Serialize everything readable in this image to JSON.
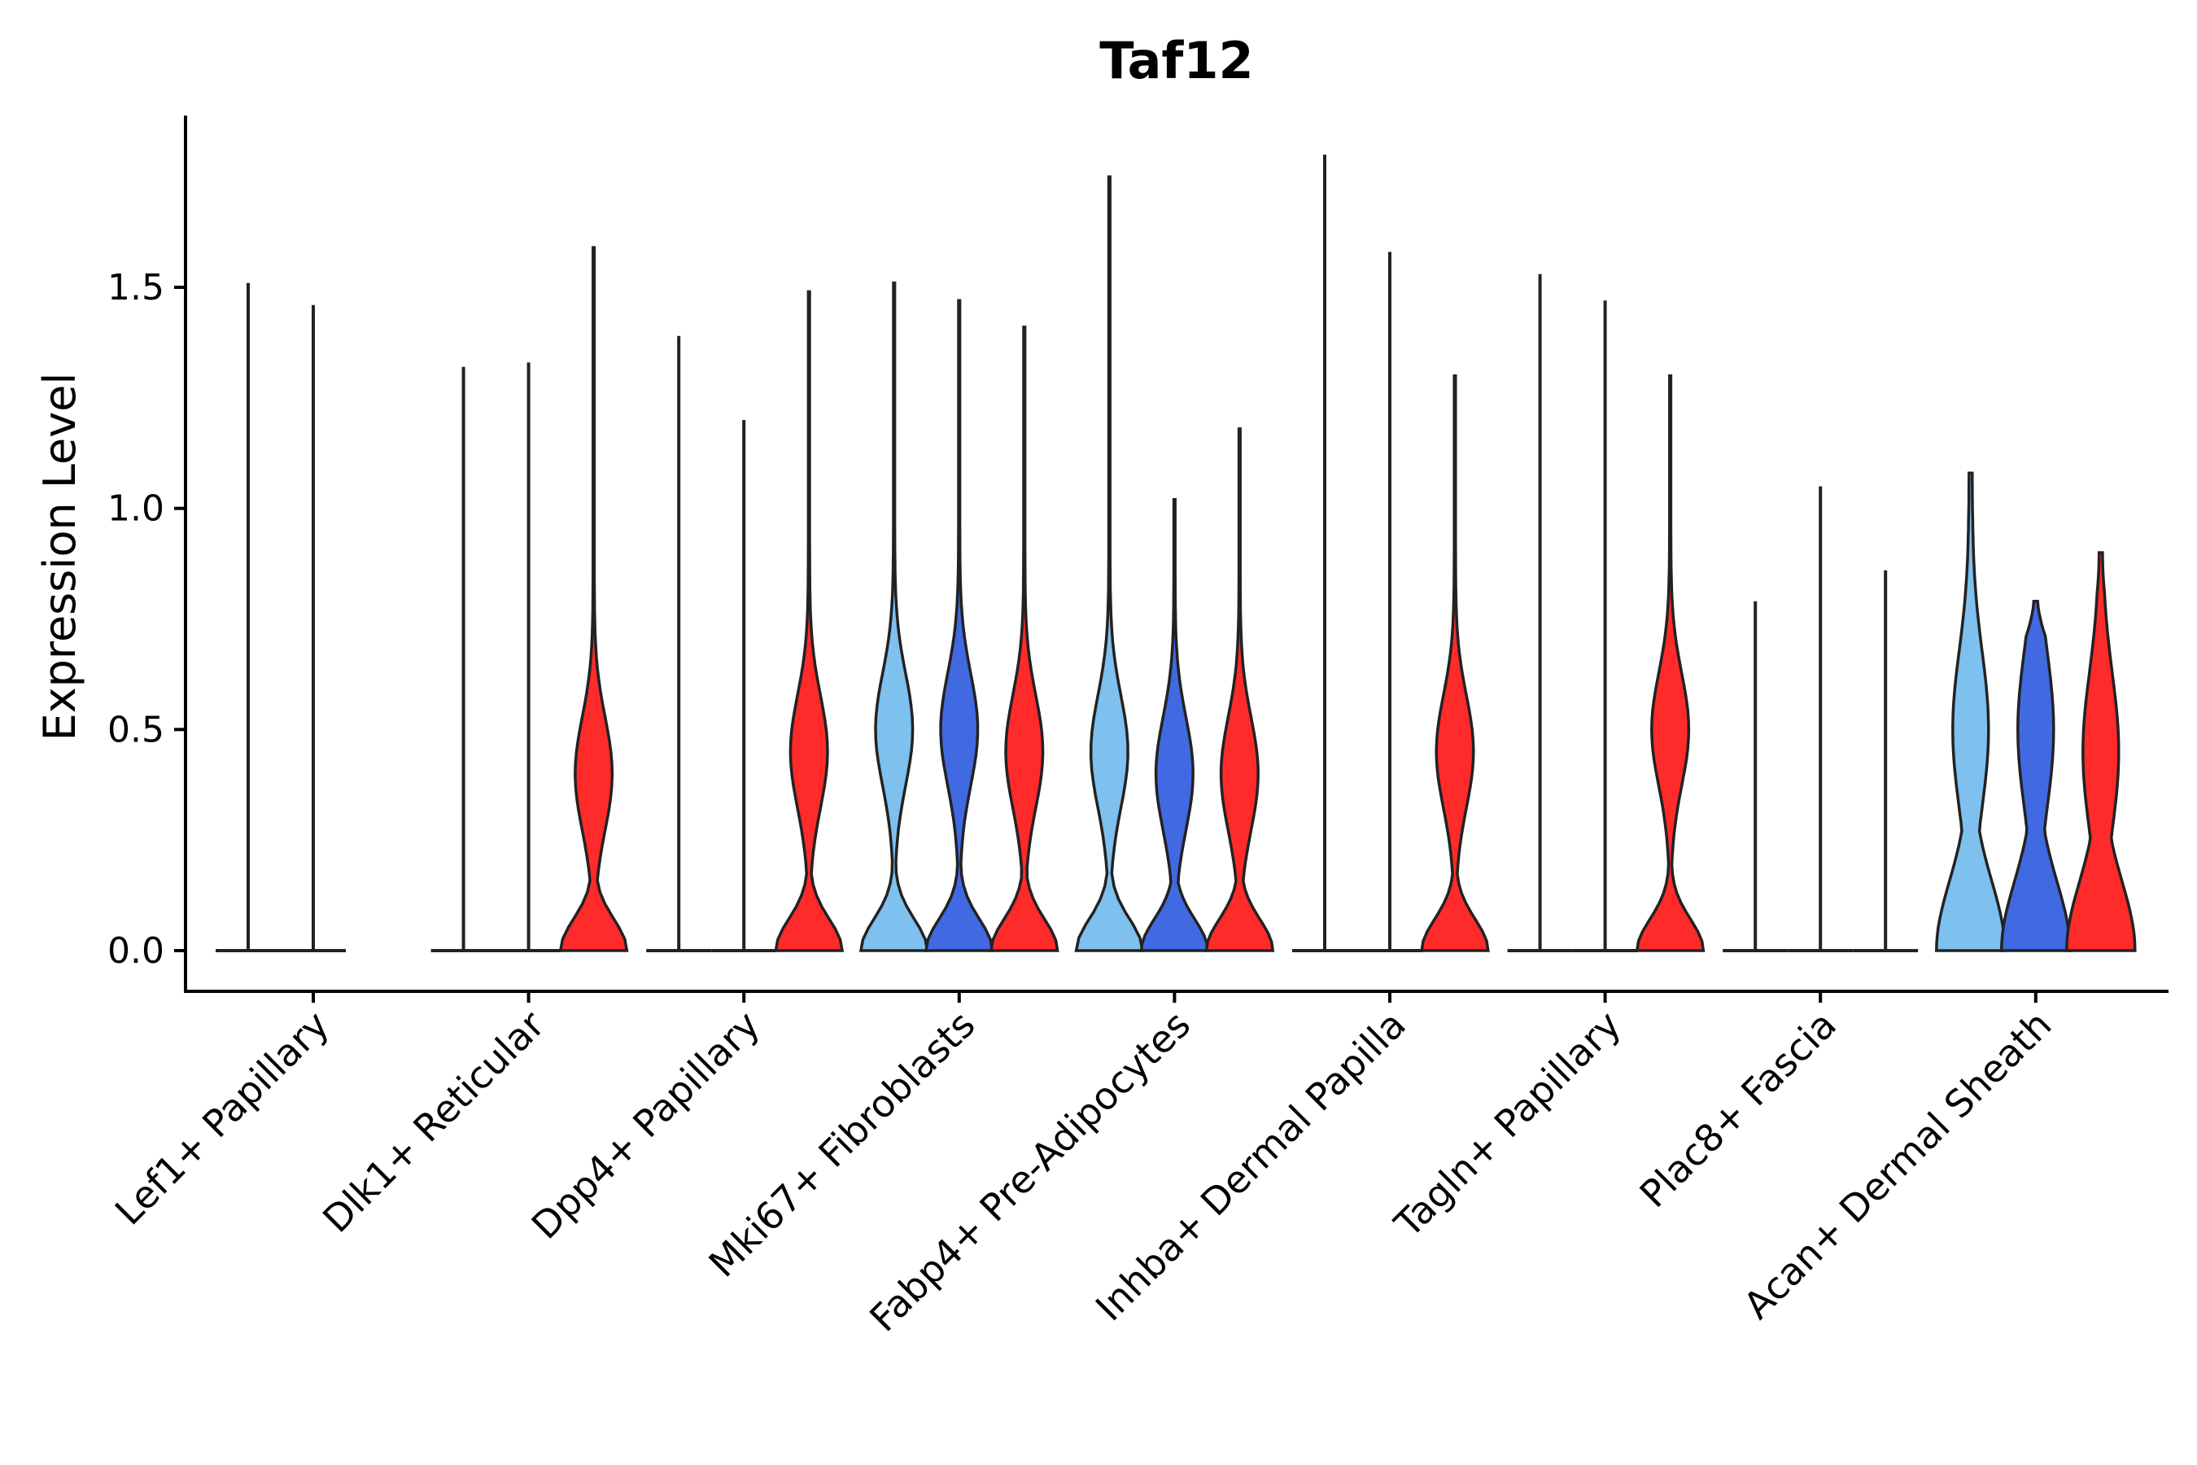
{
  "chart_data": {
    "type": "violin",
    "title": "Taf12",
    "xlabel": "",
    "ylabel": "Expression Level",
    "ylim": [
      -0.09,
      1.88
    ],
    "yticks": [
      0.0,
      0.5,
      1.0,
      1.5
    ],
    "ytick_labels": [
      "0.0",
      "0.5",
      "1.0",
      "1.5"
    ],
    "series_colors": [
      "#7EC0EE",
      "#4169E1",
      "#FF2A2A"
    ],
    "categories": [
      "Lef1+ Papillary",
      "Dlk1+ Reticular",
      "Dpp4+ Papillary",
      "Mki67+ Fibroblasts",
      "Fabp4+ Pre-Adipocytes",
      "Inhba+ Dermal Papilla",
      "Tagln+ Papillary",
      "Plac8+ Fascia",
      "Acan+ Dermal Sheath"
    ],
    "violins": [
      [
        {
          "max": 1.51,
          "shape": "flat"
        },
        {
          "max": 1.46,
          "shape": "flat"
        },
        {
          "max": 0.0,
          "shape": "none"
        }
      ],
      [
        {
          "max": 1.32,
          "shape": "flat"
        },
        {
          "max": 1.33,
          "shape": "flat"
        },
        {
          "max": 1.59,
          "shape": "bimodal",
          "mode2": 0.4
        }
      ],
      [
        {
          "max": 1.39,
          "shape": "flat"
        },
        {
          "max": 1.2,
          "shape": "flat"
        },
        {
          "max": 1.49,
          "shape": "bimodal",
          "mode2": 0.45
        }
      ],
      [
        {
          "max": 1.51,
          "shape": "bimodal",
          "mode2": 0.5
        },
        {
          "max": 1.47,
          "shape": "bimodal",
          "mode2": 0.5
        },
        {
          "max": 1.41,
          "shape": "bimodal",
          "mode2": 0.45
        }
      ],
      [
        {
          "max": 1.75,
          "shape": "bimodal",
          "mode2": 0.45
        },
        {
          "max": 1.02,
          "shape": "bimodal",
          "mode2": 0.4
        },
        {
          "max": 1.18,
          "shape": "bimodal",
          "mode2": 0.4
        }
      ],
      [
        {
          "max": 1.8,
          "shape": "flat"
        },
        {
          "max": 1.58,
          "shape": "flat"
        },
        {
          "max": 1.3,
          "shape": "bimodal",
          "mode2": 0.45
        }
      ],
      [
        {
          "max": 1.53,
          "shape": "flat"
        },
        {
          "max": 1.47,
          "shape": "flat"
        },
        {
          "max": 1.3,
          "shape": "bimodal",
          "mode2": 0.5
        }
      ],
      [
        {
          "max": 0.79,
          "shape": "flat"
        },
        {
          "max": 1.05,
          "shape": "flat"
        },
        {
          "max": 0.86,
          "shape": "flat"
        }
      ],
      [
        {
          "max": 1.08,
          "shape": "wide",
          "mode2": 0.5
        },
        {
          "max": 0.79,
          "shape": "wide",
          "mode2": 0.5
        },
        {
          "max": 0.9,
          "shape": "wide",
          "mode2": 0.45
        }
      ]
    ]
  }
}
